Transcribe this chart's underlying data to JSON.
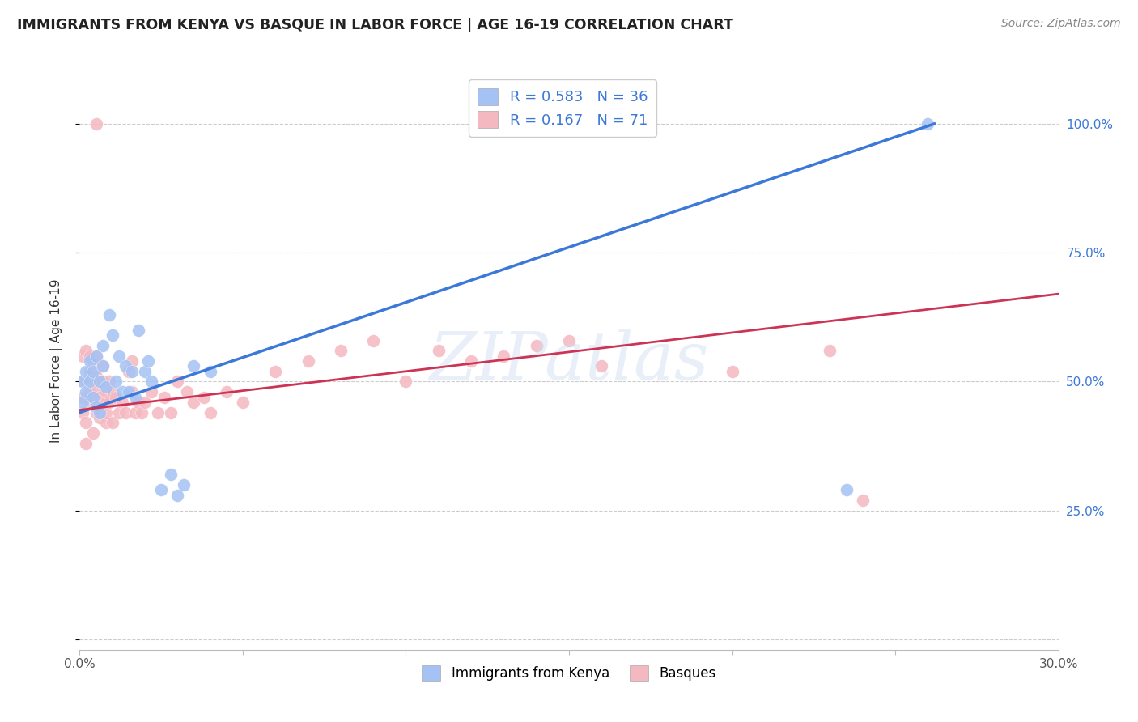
{
  "title": "IMMIGRANTS FROM KENYA VS BASQUE IN LABOR FORCE | AGE 16-19 CORRELATION CHART",
  "source_text": "Source: ZipAtlas.com",
  "ylabel": "In Labor Force | Age 16-19",
  "xlim": [
    0.0,
    0.3
  ],
  "ylim": [
    -0.02,
    1.1
  ],
  "kenya_R": 0.583,
  "kenya_N": 36,
  "basque_R": 0.167,
  "basque_N": 71,
  "kenya_color": "#a4c2f4",
  "basque_color": "#f4b8c1",
  "kenya_line_color": "#3c78d8",
  "basque_line_color": "#cc3355",
  "watermark": "ZIPatlas",
  "kenya_line_x0": 0.0,
  "kenya_line_y0": 0.44,
  "kenya_line_x1": 0.262,
  "kenya_line_y1": 1.0,
  "basque_line_x0": 0.0,
  "basque_line_y0": 0.445,
  "basque_line_x1": 0.3,
  "basque_line_y1": 0.67,
  "kenya_x": [
    0.001,
    0.001,
    0.002,
    0.002,
    0.003,
    0.003,
    0.004,
    0.004,
    0.005,
    0.005,
    0.006,
    0.006,
    0.007,
    0.007,
    0.008,
    0.009,
    0.01,
    0.011,
    0.012,
    0.013,
    0.014,
    0.015,
    0.016,
    0.017,
    0.018,
    0.02,
    0.021,
    0.022,
    0.025,
    0.028,
    0.03,
    0.032,
    0.035,
    0.04,
    0.235,
    0.26
  ],
  "kenya_y": [
    0.46,
    0.5,
    0.48,
    0.52,
    0.5,
    0.54,
    0.47,
    0.52,
    0.45,
    0.55,
    0.44,
    0.5,
    0.53,
    0.57,
    0.49,
    0.63,
    0.59,
    0.5,
    0.55,
    0.48,
    0.53,
    0.48,
    0.52,
    0.47,
    0.6,
    0.52,
    0.54,
    0.5,
    0.29,
    0.32,
    0.28,
    0.3,
    0.53,
    0.52,
    0.29,
    1.0
  ],
  "basque_x": [
    0.001,
    0.001,
    0.001,
    0.001,
    0.002,
    0.002,
    0.002,
    0.002,
    0.003,
    0.003,
    0.003,
    0.003,
    0.004,
    0.004,
    0.004,
    0.004,
    0.005,
    0.005,
    0.005,
    0.005,
    0.005,
    0.006,
    0.006,
    0.006,
    0.007,
    0.007,
    0.007,
    0.008,
    0.008,
    0.008,
    0.008,
    0.009,
    0.009,
    0.01,
    0.01,
    0.011,
    0.012,
    0.013,
    0.014,
    0.015,
    0.016,
    0.016,
    0.017,
    0.018,
    0.019,
    0.02,
    0.022,
    0.024,
    0.026,
    0.028,
    0.03,
    0.033,
    0.035,
    0.038,
    0.04,
    0.045,
    0.05,
    0.06,
    0.07,
    0.08,
    0.09,
    0.1,
    0.11,
    0.12,
    0.13,
    0.14,
    0.15,
    0.16,
    0.2,
    0.23,
    0.24
  ],
  "basque_y": [
    0.44,
    0.47,
    0.5,
    0.55,
    0.38,
    0.5,
    0.42,
    0.56,
    0.46,
    0.48,
    0.52,
    0.55,
    0.47,
    0.4,
    0.5,
    0.54,
    0.44,
    0.48,
    0.51,
    0.55,
    1.0,
    0.47,
    0.43,
    0.5,
    0.46,
    0.5,
    0.53,
    0.46,
    0.42,
    0.48,
    0.44,
    0.5,
    0.46,
    0.48,
    0.42,
    0.47,
    0.44,
    0.46,
    0.44,
    0.52,
    0.54,
    0.48,
    0.44,
    0.46,
    0.44,
    0.46,
    0.48,
    0.44,
    0.47,
    0.44,
    0.5,
    0.48,
    0.46,
    0.47,
    0.44,
    0.48,
    0.46,
    0.52,
    0.54,
    0.56,
    0.58,
    0.5,
    0.56,
    0.54,
    0.55,
    0.57,
    0.58,
    0.53,
    0.52,
    0.56,
    0.27
  ]
}
